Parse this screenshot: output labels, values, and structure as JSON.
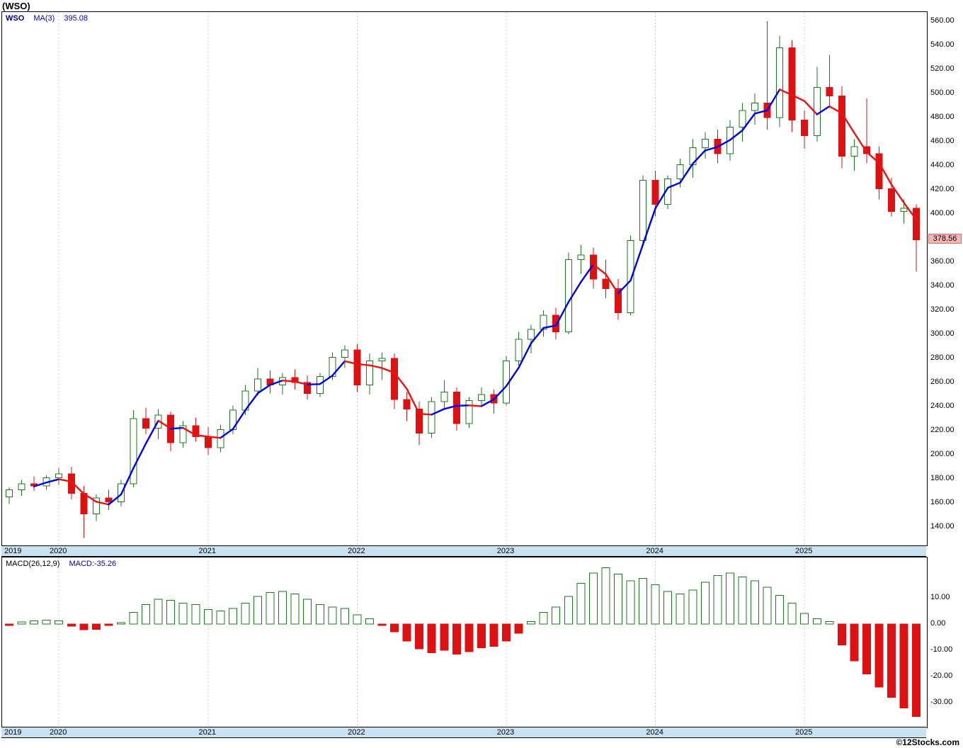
{
  "window": {
    "title": "(WSO)"
  },
  "footer": {
    "credit": "©12Stocks.com"
  },
  "main_chart": {
    "legend": {
      "symbol": "WSO",
      "ma_label": "MA(3)",
      "ma_value": "395.08"
    },
    "price_tag": "378.56",
    "y_axis": {
      "min": 140,
      "max": 560,
      "step": 20,
      "label_format": "0.00"
    },
    "x_axis_years": [
      "2019",
      "2020",
      "2021",
      "2022",
      "2023",
      "2024",
      "2025"
    ]
  },
  "macd_panel": {
    "legend": {
      "label": "MACD(26,12,9)",
      "value_label": "MACD:-35.26"
    },
    "y_axis": {
      "labels": [
        10,
        0,
        -10,
        -20,
        -30
      ],
      "label_format": "0.00"
    }
  },
  "colors": {
    "up": "#1b7a1b",
    "down": "#dd1111",
    "ma_up": "#0000ee",
    "ma_down": "#ee1111",
    "grid": "#cccccc",
    "band_bg": "#c9e2f2",
    "price_tag_bg": "#f6b6b6",
    "legend_blue": "#0000cc",
    "symbol_navy": "#000080"
  },
  "chart_data": [
    {
      "type": "candlestick",
      "title": "WSO monthly price with MA(3)",
      "ylabel": "Price",
      "ylim": [
        140,
        560
      ],
      "ma_period": 3,
      "grid": "vertical-year-lines",
      "months": [
        "2019-09",
        "2019-10",
        "2019-11",
        "2019-12",
        "2020-01",
        "2020-02",
        "2020-03",
        "2020-04",
        "2020-05",
        "2020-06",
        "2020-07",
        "2020-08",
        "2020-09",
        "2020-10",
        "2020-11",
        "2020-12",
        "2021-01",
        "2021-02",
        "2021-03",
        "2021-04",
        "2021-05",
        "2021-06",
        "2021-07",
        "2021-08",
        "2021-09",
        "2021-10",
        "2021-11",
        "2021-12",
        "2022-01",
        "2022-02",
        "2022-03",
        "2022-04",
        "2022-05",
        "2022-06",
        "2022-07",
        "2022-08",
        "2022-09",
        "2022-10",
        "2022-11",
        "2022-12",
        "2023-01",
        "2023-02",
        "2023-03",
        "2023-04",
        "2023-05",
        "2023-06",
        "2023-07",
        "2023-08",
        "2023-09",
        "2023-10",
        "2023-11",
        "2023-12",
        "2024-01",
        "2024-02",
        "2024-03",
        "2024-04",
        "2024-05",
        "2024-06",
        "2024-07",
        "2024-08",
        "2024-09",
        "2024-10",
        "2024-11",
        "2024-12",
        "2025-01",
        "2025-02",
        "2025-03",
        "2025-04",
        "2025-05",
        "2025-06",
        "2025-07",
        "2025-08",
        "2025-09",
        "2025-10"
      ],
      "ohlc": [
        [
          165,
          173,
          159,
          171
        ],
        [
          171,
          179,
          166,
          176
        ],
        [
          176,
          182,
          170,
          174
        ],
        [
          174,
          183,
          171,
          181
        ],
        [
          181,
          189,
          175,
          184
        ],
        [
          184,
          190,
          163,
          168
        ],
        [
          168,
          174,
          131,
          151
        ],
        [
          151,
          167,
          145,
          164
        ],
        [
          164,
          171,
          154,
          161
        ],
        [
          161,
          179,
          157,
          176
        ],
        [
          176,
          237,
          173,
          230
        ],
        [
          230,
          239,
          217,
          222
        ],
        [
          222,
          238,
          213,
          233
        ],
        [
          233,
          236,
          203,
          210
        ],
        [
          210,
          228,
          206,
          224
        ],
        [
          224,
          231,
          211,
          215
        ],
        [
          215,
          223,
          200,
          206
        ],
        [
          206,
          225,
          202,
          221
        ],
        [
          221,
          241,
          217,
          237
        ],
        [
          237,
          258,
          233,
          253
        ],
        [
          253,
          272,
          249,
          263
        ],
        [
          263,
          270,
          251,
          258
        ],
        [
          258,
          268,
          250,
          264
        ],
        [
          264,
          271,
          254,
          260
        ],
        [
          260,
          266,
          246,
          251
        ],
        [
          251,
          268,
          248,
          265
        ],
        [
          265,
          285,
          262,
          281
        ],
        [
          281,
          291,
          272,
          287
        ],
        [
          287,
          292,
          252,
          258
        ],
        [
          258,
          284,
          250,
          278
        ],
        [
          278,
          285,
          262,
          280
        ],
        [
          280,
          284,
          238,
          246
        ],
        [
          246,
          252,
          228,
          238
        ],
        [
          238,
          244,
          208,
          218
        ],
        [
          218,
          248,
          214,
          244
        ],
        [
          244,
          262,
          238,
          252
        ],
        [
          252,
          256,
          220,
          226
        ],
        [
          226,
          248,
          222,
          245
        ],
        [
          245,
          256,
          240,
          250
        ],
        [
          250,
          254,
          234,
          243
        ],
        [
          243,
          282,
          241,
          278
        ],
        [
          278,
          302,
          274,
          296
        ],
        [
          296,
          308,
          284,
          304
        ],
        [
          304,
          320,
          298,
          316
        ],
        [
          316,
          322,
          296,
          302
        ],
        [
          302,
          368,
          300,
          362
        ],
        [
          362,
          374,
          350,
          366
        ],
        [
          366,
          372,
          338,
          346
        ],
        [
          346,
          362,
          330,
          338
        ],
        [
          338,
          346,
          312,
          318
        ],
        [
          318,
          382,
          316,
          378
        ],
        [
          378,
          432,
          374,
          428
        ],
        [
          428,
          436,
          398,
          408
        ],
        [
          408,
          432,
          404,
          429
        ],
        [
          429,
          446,
          422,
          441
        ],
        [
          441,
          462,
          430,
          455
        ],
        [
          455,
          468,
          446,
          462
        ],
        [
          462,
          470,
          442,
          450
        ],
        [
          450,
          478,
          444,
          472
        ],
        [
          472,
          492,
          460,
          486
        ],
        [
          486,
          500,
          474,
          492
        ],
        [
          492,
          560,
          470,
          480
        ],
        [
          480,
          548,
          472,
          538
        ],
        [
          538,
          544,
          468,
          478
        ],
        [
          478,
          486,
          454,
          465
        ],
        [
          465,
          522,
          460,
          505
        ],
        [
          505,
          532,
          488,
          498
        ],
        [
          498,
          506,
          438,
          448
        ],
        [
          448,
          462,
          436,
          456
        ],
        [
          456,
          496,
          442,
          450
        ],
        [
          450,
          456,
          412,
          421
        ],
        [
          421,
          430,
          398,
          402
        ],
        [
          402,
          412,
          392,
          404.68
        ],
        [
          404.68,
          408,
          352,
          378.56
        ]
      ],
      "last_close": 378.56,
      "ma3_last": 395.08
    },
    {
      "type": "bar",
      "title": "MACD(26,12,9) histogram",
      "ylabel": "MACD",
      "ylim": [
        -40,
        25
      ],
      "uses_same_x_as_price_series": true,
      "values": [
        -0.5,
        0.8,
        1.2,
        1.5,
        1.2,
        -0.8,
        -2.2,
        -2.0,
        -0.6,
        0.5,
        4.5,
        7.5,
        9.5,
        9.0,
        8.0,
        7.5,
        5.5,
        5.0,
        6.0,
        8.0,
        10.5,
        12.0,
        12.5,
        11.5,
        9.5,
        7.5,
        6.5,
        6.0,
        3.5,
        2.0,
        -0.5,
        -3.0,
        -6.5,
        -9.5,
        -11.0,
        -10.0,
        -11.5,
        -10.5,
        -9.0,
        -8.5,
        -6.5,
        -3.5,
        1.0,
        4.5,
        6.5,
        10.5,
        15.5,
        19.5,
        21.5,
        19.0,
        16.5,
        17.5,
        15.0,
        12.5,
        11.5,
        13.0,
        16.0,
        18.5,
        19.5,
        18.0,
        16.5,
        14.0,
        11.0,
        8.0,
        4.0,
        2.0,
        1.0,
        -8.0,
        -14.0,
        -19.0,
        -24.0,
        -28.0,
        -32.0,
        -35.26
      ],
      "last_value": -35.26
    }
  ]
}
